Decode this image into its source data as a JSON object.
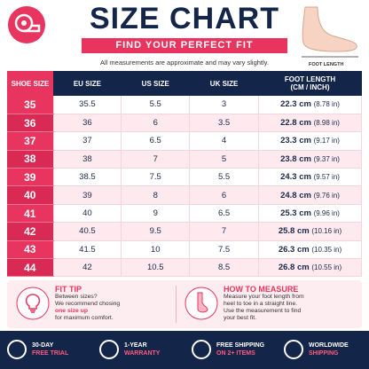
{
  "header": {
    "title": "SIZE CHART",
    "subtitle": "FIND YOUR PERFECT FIT",
    "note": "All measurements are approximate and may vary slightly.",
    "foot_label": "FOOT LENGTH"
  },
  "table": {
    "headers": [
      "SHOE SIZE",
      "EU SIZE",
      "US SIZE",
      "UK SIZE",
      "FOOT LENGTH",
      "(CM / INCH)"
    ],
    "rows": [
      [
        "35",
        "35.5",
        "5.5",
        "3",
        "22.3 cm",
        "(8.78 in)"
      ],
      [
        "36",
        "36",
        "6",
        "3.5",
        "22.8 cm",
        "(8.98 in)"
      ],
      [
        "37",
        "37",
        "6.5",
        "4",
        "23.3 cm",
        "(9.17 in)"
      ],
      [
        "38",
        "38",
        "7",
        "5",
        "23.8 cm",
        "(9.37 in)"
      ],
      [
        "39",
        "38.5",
        "7.5",
        "5.5",
        "24.3 cm",
        "(9.57 in)"
      ],
      [
        "40",
        "39",
        "8",
        "6",
        "24.8 cm",
        "(9.76 in)"
      ],
      [
        "41",
        "40",
        "9",
        "6.5",
        "25.3 cm",
        "(9.96 in)"
      ],
      [
        "42",
        "40.5",
        "9.5",
        "7",
        "25.8 cm",
        "(10.16 in)"
      ],
      [
        "43",
        "41.5",
        "10",
        "7.5",
        "26.3 cm",
        "(10.35 in)"
      ],
      [
        "44",
        "42",
        "10.5",
        "8.5",
        "26.8 cm",
        "(10.55 in)"
      ]
    ]
  },
  "fit_tip": {
    "title": "FIT TIP",
    "line1": "Between sizes?",
    "line2": "We recommend chosing",
    "highlight": "one size up",
    "line3": "for maximum comfort."
  },
  "how_to_measure": {
    "title": "HOW TO MEASURE",
    "lines": [
      "Measure your foot length from",
      "heel to toe in a straight line.",
      "Use the measurement to find",
      "your best fit."
    ]
  },
  "badges": [
    [
      "30-DAY",
      "FREE TRIAL"
    ],
    [
      "1-YEAR",
      "WARRANTY"
    ],
    [
      "FREE SHIPPING",
      "ON 2+ ITEMS"
    ],
    [
      "WORLDWIDE",
      "SHIPPING"
    ]
  ]
}
